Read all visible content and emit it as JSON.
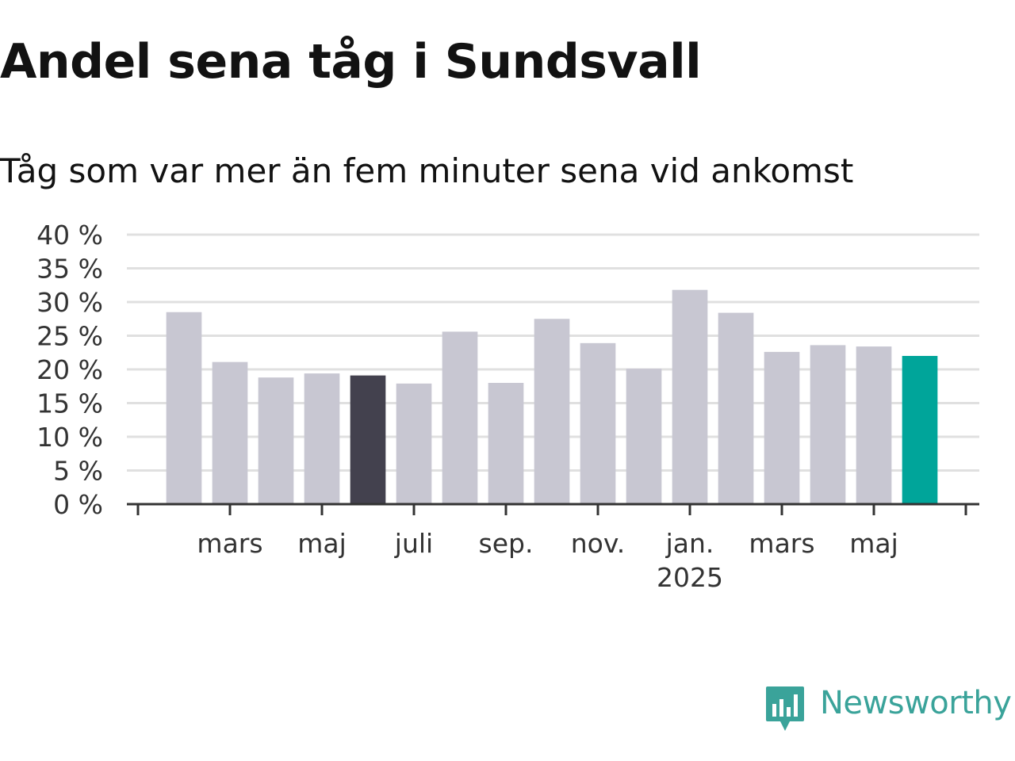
{
  "header": {
    "title": "Andel sena tåg i Sundsvall",
    "subtitle": "Tåg som var mer än fem minuter sena vid ankomst"
  },
  "brand": {
    "name": "Newsworthy",
    "color": "#3aa39a"
  },
  "colors": {
    "bar_default": "#c8c7d2",
    "bar_highlight": "#43414e",
    "bar_latest": "#00a59a",
    "gridline": "#e0e0e0",
    "axis": "#333333"
  },
  "chart_data": {
    "type": "bar",
    "title": "Andel sena tåg i Sundsvall",
    "subtitle": "Tåg som var mer än fem minuter sena vid ankomst",
    "xlabel": "",
    "ylabel": "",
    "ylim": [
      0,
      40
    ],
    "y_ticks": [
      0,
      5,
      10,
      15,
      20,
      25,
      30,
      35,
      40
    ],
    "y_tick_labels": [
      "0 %",
      "5 %",
      "10 %",
      "15 %",
      "20 %",
      "25 %",
      "30 %",
      "35 %",
      "40 %"
    ],
    "grid": true,
    "categories": [
      "2024-02",
      "2024-03",
      "2024-04",
      "2024-05",
      "2024-06",
      "2024-07",
      "2024-08",
      "2024-09",
      "2024-10",
      "2024-11",
      "2024-12",
      "2025-01",
      "2025-02",
      "2025-03",
      "2025-04",
      "2025-05",
      "2025-06"
    ],
    "values": [
      28.5,
      21.1,
      18.8,
      19.4,
      19.1,
      17.9,
      25.6,
      18.0,
      27.5,
      23.9,
      20.1,
      31.8,
      28.4,
      22.6,
      23.6,
      23.4,
      22.0
    ],
    "highlight": {
      "2024-06": "highlight",
      "2025-06": "latest"
    },
    "x_tick_labels": [
      {
        "category": "2024-03",
        "label": "mars"
      },
      {
        "category": "2024-05",
        "label": "maj"
      },
      {
        "category": "2024-07",
        "label": "juli"
      },
      {
        "category": "2024-09",
        "label": "sep."
      },
      {
        "category": "2024-11",
        "label": "nov."
      },
      {
        "category": "2025-01",
        "label": "jan.",
        "sublabel": "2025"
      },
      {
        "category": "2025-03",
        "label": "mars"
      },
      {
        "category": "2025-05",
        "label": "maj"
      }
    ]
  }
}
